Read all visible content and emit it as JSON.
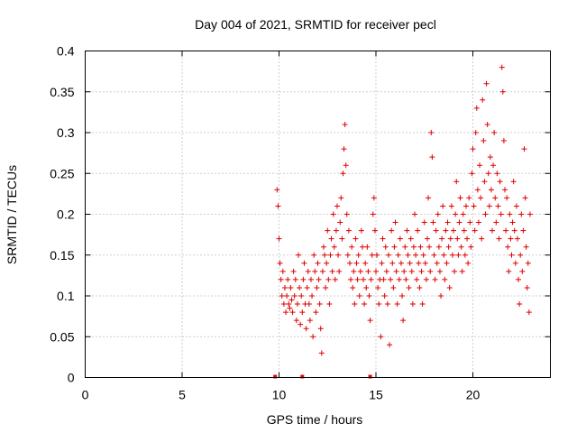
{
  "chart_data": {
    "type": "scatter",
    "title": "Day 004 of 2021, SRMTID for receiver pecl",
    "xlabel": "GPS time / hours",
    "ylabel": "SRMTID / TECUs",
    "xlim": [
      0,
      24
    ],
    "ylim": [
      0,
      0.4
    ],
    "xticks": [
      0,
      5,
      10,
      15,
      20
    ],
    "xtick_labels": [
      "0",
      "5",
      "10",
      "15",
      "20"
    ],
    "yticks": [
      0,
      0.05,
      0.1,
      0.15,
      0.2,
      0.25,
      0.3,
      0.35,
      0.4
    ],
    "ytick_labels": [
      "0",
      "0.05",
      "0.1",
      "0.15",
      "0.2",
      "0.25",
      "0.3",
      "0.35",
      "0.4"
    ],
    "grid": true,
    "marker": "plus",
    "color": "#e00000",
    "baseline_markers_x": [
      9.8,
      11.2,
      14.7
    ],
    "series": [
      {
        "name": "SRMTID",
        "points": [
          [
            9.9,
            0.23
          ],
          [
            9.95,
            0.21
          ],
          [
            10.0,
            0.17
          ],
          [
            10.05,
            0.14
          ],
          [
            10.1,
            0.12
          ],
          [
            10.15,
            0.1
          ],
          [
            10.2,
            0.13
          ],
          [
            10.25,
            0.09
          ],
          [
            10.3,
            0.11
          ],
          [
            10.35,
            0.08
          ],
          [
            10.4,
            0.1
          ],
          [
            10.45,
            0.12
          ],
          [
            10.5,
            0.09
          ],
          [
            10.55,
            0.085
          ],
          [
            10.6,
            0.11
          ],
          [
            10.65,
            0.095
          ],
          [
            10.7,
            0.08
          ],
          [
            10.75,
            0.13
          ],
          [
            10.8,
            0.1
          ],
          [
            10.85,
            0.12
          ],
          [
            10.9,
            0.07
          ],
          [
            10.95,
            0.09
          ],
          [
            11.0,
            0.15
          ],
          [
            11.05,
            0.11
          ],
          [
            11.1,
            0.065
          ],
          [
            11.15,
            0.1
          ],
          [
            11.2,
            0.08
          ],
          [
            11.25,
            0.12
          ],
          [
            11.3,
            0.14
          ],
          [
            11.35,
            0.09
          ],
          [
            11.4,
            0.06
          ],
          [
            11.45,
            0.11
          ],
          [
            11.5,
            0.13
          ],
          [
            11.55,
            0.09
          ],
          [
            11.6,
            0.07
          ],
          [
            11.65,
            0.12
          ],
          [
            11.7,
            0.1
          ],
          [
            11.75,
            0.05
          ],
          [
            11.8,
            0.15
          ],
          [
            11.85,
            0.13
          ],
          [
            11.9,
            0.08
          ],
          [
            11.95,
            0.11
          ],
          [
            12.0,
            0.14
          ],
          [
            12.05,
            0.12
          ],
          [
            12.1,
            0.09
          ],
          [
            12.15,
            0.06
          ],
          [
            12.2,
            0.03
          ],
          [
            12.25,
            0.13
          ],
          [
            12.3,
            0.16
          ],
          [
            12.35,
            0.15
          ],
          [
            12.4,
            0.11
          ],
          [
            12.45,
            0.14
          ],
          [
            12.5,
            0.18
          ],
          [
            12.55,
            0.12
          ],
          [
            12.6,
            0.09
          ],
          [
            12.65,
            0.15
          ],
          [
            12.7,
            0.17
          ],
          [
            12.75,
            0.13
          ],
          [
            12.8,
            0.2
          ],
          [
            12.85,
            0.16
          ],
          [
            12.9,
            0.12
          ],
          [
            12.95,
            0.18
          ],
          [
            13.0,
            0.21
          ],
          [
            13.05,
            0.15
          ],
          [
            13.1,
            0.13
          ],
          [
            13.15,
            0.19
          ],
          [
            13.2,
            0.22
          ],
          [
            13.25,
            0.17
          ],
          [
            13.3,
            0.25
          ],
          [
            13.35,
            0.28
          ],
          [
            13.4,
            0.31
          ],
          [
            13.45,
            0.26
          ],
          [
            13.5,
            0.2
          ],
          [
            13.55,
            0.15
          ],
          [
            13.6,
            0.18
          ],
          [
            13.65,
            0.14
          ],
          [
            13.7,
            0.12
          ],
          [
            13.75,
            0.16
          ],
          [
            13.8,
            0.11
          ],
          [
            13.85,
            0.13
          ],
          [
            13.9,
            0.09
          ],
          [
            13.95,
            0.17
          ],
          [
            14.0,
            0.14
          ],
          [
            14.05,
            0.12
          ],
          [
            14.1,
            0.15
          ],
          [
            14.15,
            0.1
          ],
          [
            14.2,
            0.13
          ],
          [
            14.25,
            0.18
          ],
          [
            14.3,
            0.16
          ],
          [
            14.35,
            0.12
          ],
          [
            14.4,
            0.09
          ],
          [
            14.45,
            0.14
          ],
          [
            14.5,
            0.11
          ],
          [
            14.55,
            0.16
          ],
          [
            14.6,
            0.13
          ],
          [
            14.65,
            0.1
          ],
          [
            14.7,
            0.07
          ],
          [
            14.75,
            0.12
          ],
          [
            14.8,
            0.15
          ],
          [
            14.85,
            0.2
          ],
          [
            14.9,
            0.22
          ],
          [
            14.95,
            0.18
          ],
          [
            15.0,
            0.13
          ],
          [
            15.05,
            0.15
          ],
          [
            15.1,
            0.11
          ],
          [
            15.15,
            0.09
          ],
          [
            15.2,
            0.12
          ],
          [
            15.25,
            0.05
          ],
          [
            15.3,
            0.14
          ],
          [
            15.35,
            0.17
          ],
          [
            15.4,
            0.12
          ],
          [
            15.45,
            0.1
          ],
          [
            15.5,
            0.16
          ],
          [
            15.55,
            0.13
          ],
          [
            15.6,
            0.09
          ],
          [
            15.65,
            0.15
          ],
          [
            15.7,
            0.04
          ],
          [
            15.75,
            0.12
          ],
          [
            15.8,
            0.18
          ],
          [
            15.85,
            0.14
          ],
          [
            15.9,
            0.11
          ],
          [
            15.95,
            0.16
          ],
          [
            16.0,
            0.19
          ],
          [
            16.05,
            0.13
          ],
          [
            16.1,
            0.09
          ],
          [
            16.15,
            0.15
          ],
          [
            16.2,
            0.12
          ],
          [
            16.25,
            0.17
          ],
          [
            16.3,
            0.14
          ],
          [
            16.35,
            0.1
          ],
          [
            16.4,
            0.07
          ],
          [
            16.45,
            0.13
          ],
          [
            16.5,
            0.16
          ],
          [
            16.55,
            0.12
          ],
          [
            16.6,
            0.18
          ],
          [
            16.65,
            0.15
          ],
          [
            16.7,
            0.11
          ],
          [
            16.75,
            0.14
          ],
          [
            16.8,
            0.17
          ],
          [
            16.85,
            0.13
          ],
          [
            16.9,
            0.09
          ],
          [
            16.95,
            0.16
          ],
          [
            17.0,
            0.2
          ],
          [
            17.05,
            0.15
          ],
          [
            17.1,
            0.12
          ],
          [
            17.15,
            0.18
          ],
          [
            17.2,
            0.14
          ],
          [
            17.25,
            0.11
          ],
          [
            17.3,
            0.16
          ],
          [
            17.35,
            0.13
          ],
          [
            17.4,
            0.09
          ],
          [
            17.45,
            0.15
          ],
          [
            17.5,
            0.19
          ],
          [
            17.55,
            0.14
          ],
          [
            17.6,
            0.12
          ],
          [
            17.65,
            0.17
          ],
          [
            17.7,
            0.22
          ],
          [
            17.75,
            0.16
          ],
          [
            17.8,
            0.13
          ],
          [
            17.85,
            0.3
          ],
          [
            17.9,
            0.27
          ],
          [
            17.95,
            0.19
          ],
          [
            18.0,
            0.15
          ],
          [
            18.05,
            0.12
          ],
          [
            18.1,
            0.18
          ],
          [
            18.15,
            0.14
          ],
          [
            18.2,
            0.2
          ],
          [
            18.25,
            0.16
          ],
          [
            18.3,
            0.13
          ],
          [
            18.35,
            0.1
          ],
          [
            18.4,
            0.17
          ],
          [
            18.45,
            0.21
          ],
          [
            18.5,
            0.15
          ],
          [
            18.55,
            0.12
          ],
          [
            18.6,
            0.18
          ],
          [
            18.65,
            0.14
          ],
          [
            18.7,
            0.19
          ],
          [
            18.75,
            0.16
          ],
          [
            18.8,
            0.11
          ],
          [
            18.85,
            0.17
          ],
          [
            18.9,
            0.21
          ],
          [
            18.95,
            0.15
          ],
          [
            19.0,
            0.18
          ],
          [
            19.05,
            0.13
          ],
          [
            19.1,
            0.2
          ],
          [
            19.15,
            0.24
          ],
          [
            19.2,
            0.17
          ],
          [
            19.25,
            0.15
          ],
          [
            19.3,
            0.19
          ],
          [
            19.35,
            0.22
          ],
          [
            19.4,
            0.16
          ],
          [
            19.45,
            0.13
          ],
          [
            19.5,
            0.2
          ],
          [
            19.55,
            0.18
          ],
          [
            19.6,
            0.15
          ],
          [
            19.65,
            0.21
          ],
          [
            19.7,
            0.17
          ],
          [
            19.75,
            0.14
          ],
          [
            19.8,
            0.22
          ],
          [
            19.85,
            0.19
          ],
          [
            19.9,
            0.16
          ],
          [
            19.95,
            0.25
          ],
          [
            20.0,
            0.28
          ],
          [
            20.05,
            0.21
          ],
          [
            20.1,
            0.18
          ],
          [
            20.15,
            0.3
          ],
          [
            20.2,
            0.33
          ],
          [
            20.25,
            0.23
          ],
          [
            20.3,
            0.19
          ],
          [
            20.35,
            0.26
          ],
          [
            20.4,
            0.22
          ],
          [
            20.45,
            0.17
          ],
          [
            20.5,
            0.34
          ],
          [
            20.55,
            0.29
          ],
          [
            20.6,
            0.24
          ],
          [
            20.65,
            0.2
          ],
          [
            20.7,
            0.36
          ],
          [
            20.75,
            0.31
          ],
          [
            20.8,
            0.25
          ],
          [
            20.85,
            0.21
          ],
          [
            20.9,
            0.27
          ],
          [
            20.95,
            0.23
          ],
          [
            21.0,
            0.18
          ],
          [
            21.05,
            0.26
          ],
          [
            21.1,
            0.3
          ],
          [
            21.15,
            0.22
          ],
          [
            21.2,
            0.19
          ],
          [
            21.25,
            0.25
          ],
          [
            21.3,
            0.21
          ],
          [
            21.35,
            0.17
          ],
          [
            21.4,
            0.24
          ],
          [
            21.45,
            0.2
          ],
          [
            21.5,
            0.38
          ],
          [
            21.55,
            0.35
          ],
          [
            21.6,
            0.29
          ],
          [
            21.65,
            0.23
          ],
          [
            21.7,
            0.18
          ],
          [
            21.75,
            0.22
          ],
          [
            21.8,
            0.16
          ],
          [
            21.85,
            0.13
          ],
          [
            21.9,
            0.2
          ],
          [
            21.95,
            0.17
          ],
          [
            22.0,
            0.15
          ],
          [
            22.05,
            0.19
          ],
          [
            22.1,
            0.24
          ],
          [
            22.15,
            0.18
          ],
          [
            22.2,
            0.14
          ],
          [
            22.25,
            0.21
          ],
          [
            22.3,
            0.17
          ],
          [
            22.35,
            0.12
          ],
          [
            22.4,
            0.09
          ],
          [
            22.45,
            0.15
          ],
          [
            22.5,
            0.2
          ],
          [
            22.55,
            0.13
          ],
          [
            22.6,
            0.18
          ],
          [
            22.65,
            0.28
          ],
          [
            22.7,
            0.22
          ],
          [
            22.75,
            0.16
          ],
          [
            22.8,
            0.11
          ],
          [
            22.85,
            0.14
          ],
          [
            22.9,
            0.08
          ],
          [
            22.95,
            0.2
          ]
        ]
      }
    ]
  }
}
